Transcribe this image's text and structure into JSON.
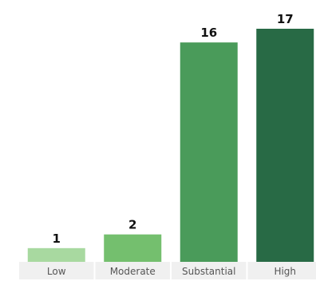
{
  "chart_data": {
    "type": "bar",
    "title": "",
    "xlabel": "",
    "ylabel": "",
    "categories": [
      "Low",
      "Moderate",
      "Substantial",
      "High"
    ],
    "values": [
      1,
      2,
      16,
      17
    ],
    "value_labels": [
      "1",
      "2",
      "16",
      "17"
    ],
    "colors": [
      "#a8d9a0",
      "#74bf6e",
      "#4a9b5a",
      "#286a45"
    ],
    "ylim": [
      0,
      17
    ],
    "grid": false,
    "legend": "none",
    "category_band_color": "#f0f0f0"
  }
}
